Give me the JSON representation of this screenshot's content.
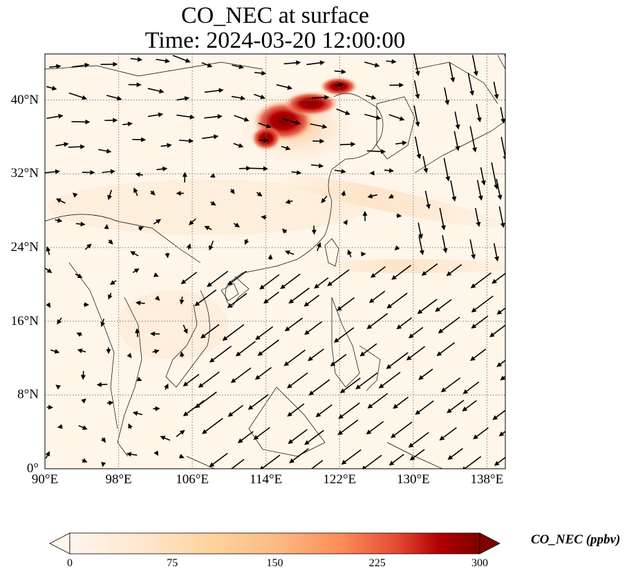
{
  "title": "CO_NEC at surface",
  "subtitle": "Time: 2024-03-20 12:00:00",
  "map": {
    "lon_range": [
      90,
      140
    ],
    "lat_range": [
      0,
      45
    ],
    "x_ticks": [
      "90°E",
      "98°E",
      "106°E",
      "114°E",
      "122°E",
      "130°E",
      "138°E"
    ],
    "x_tick_values": [
      90,
      98,
      106,
      114,
      122,
      130,
      138
    ],
    "y_ticks": [
      "0°",
      "8°N",
      "16°N",
      "24°N",
      "32°N",
      "40°N"
    ],
    "y_tick_values": [
      0,
      8,
      16,
      24,
      32,
      40
    ],
    "gridlines": "dotted",
    "field": "CO_NEC",
    "overlay": "surface wind vectors"
  },
  "colorbar": {
    "label": "CO_NEC (ppbv)",
    "ticks": [
      "0",
      "75",
      "150",
      "225",
      "300"
    ],
    "range": [
      0,
      300
    ],
    "extend": "both",
    "colormap": [
      "#fff5eb",
      "#fdd49e",
      "#fdbb84",
      "#fc8d59",
      "#e34a33",
      "#b30000",
      "#7f0000"
    ]
  },
  "colors": {
    "land_outline": "#000000",
    "grid": "#777777",
    "vector": "#000000"
  }
}
